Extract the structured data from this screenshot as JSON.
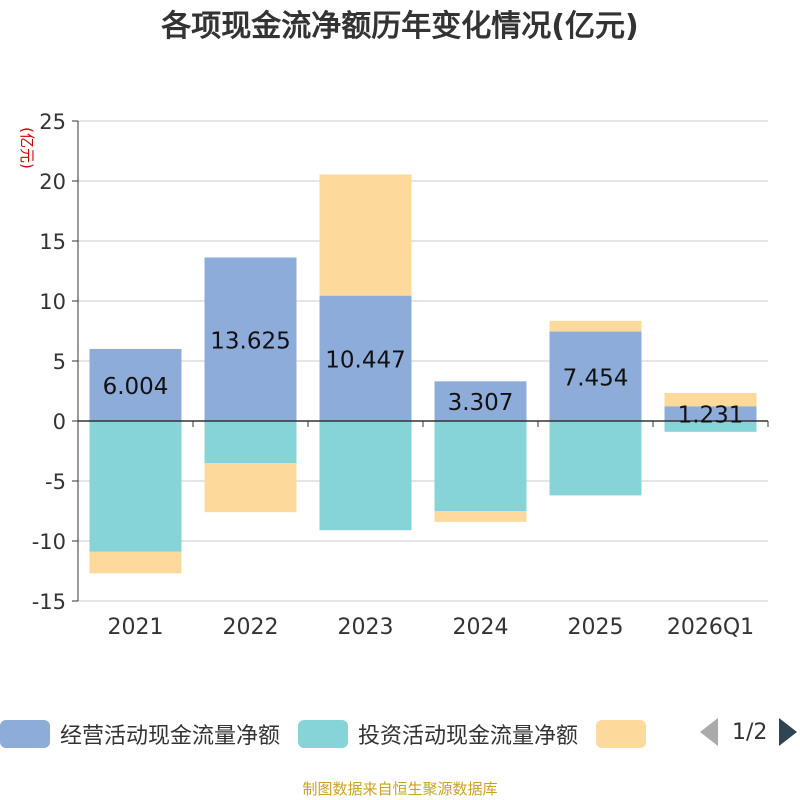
{
  "chart_data": {
    "type": "bar",
    "stacked": true,
    "title": "各项现金流净额历年变化情况(亿元)",
    "ylabel": "(亿元)",
    "categories": [
      "2021",
      "2022",
      "2023",
      "2024",
      "2025",
      "2026Q1"
    ],
    "ylim": [
      -15,
      25
    ],
    "yticks": [
      25,
      20,
      15,
      10,
      5,
      0,
      -5,
      -10,
      -15
    ],
    "series": [
      {
        "name": "经营活动现金流量净额",
        "color": "#8eacda",
        "values": [
          6.004,
          13.625,
          10.447,
          3.307,
          7.454,
          1.231
        ],
        "labels": [
          "6.004",
          "13.625",
          "10.447",
          "3.307",
          "7.454",
          "1.231"
        ]
      },
      {
        "name": "投资活动现金流量净额",
        "color": "#86d4d7",
        "values": [
          -10.9,
          -3.5,
          -9.1,
          -7.5,
          -6.2,
          -0.9
        ]
      },
      {
        "name": "",
        "color": "#fdd99b",
        "values": [
          -1.8,
          -4.1,
          10.1,
          -0.9,
          0.9,
          1.1
        ]
      }
    ]
  },
  "legend": {
    "items": [
      "经营活动现金流量净额",
      "投资活动现金流量净额",
      ""
    ],
    "page": "1/2"
  },
  "footer": "制图数据来自恒生聚源数据库"
}
